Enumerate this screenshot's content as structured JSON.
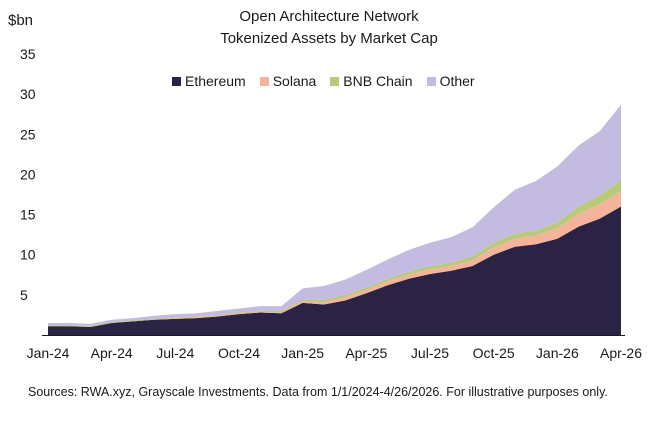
{
  "chart_data": {
    "type": "area",
    "stacked": true,
    "title": "Open Architecture Network",
    "subtitle": "Tokenized Assets by Market Cap",
    "ylabel": "$bn",
    "xlabel": "",
    "ylim": [
      0,
      35
    ],
    "yticks": [
      "5",
      "10",
      "15",
      "20",
      "25",
      "30",
      "35"
    ],
    "ytick_values": [
      5,
      10,
      15,
      20,
      25,
      30,
      35
    ],
    "xticks": [
      "Jan-24",
      "Apr-24",
      "Jul-24",
      "Oct-24",
      "Jan-25",
      "Apr-25",
      "Jul-25",
      "Oct-25",
      "Jan-26",
      "Apr-26"
    ],
    "legend_position": "top-center",
    "x": [
      "2024-01",
      "2024-02",
      "2024-03",
      "2024-04",
      "2024-05",
      "2024-06",
      "2024-07",
      "2024-08",
      "2024-09",
      "2024-10",
      "2024-11",
      "2024-12",
      "2025-01",
      "2025-02",
      "2025-03",
      "2025-04",
      "2025-05",
      "2025-06",
      "2025-07",
      "2025-08",
      "2025-09",
      "2025-10",
      "2025-11",
      "2025-12",
      "2026-01",
      "2026-02",
      "2026-03",
      "2026-04"
    ],
    "series": [
      {
        "name": "Ethereum",
        "color": "#2b2344",
        "values": [
          1.1,
          1.1,
          1.0,
          1.5,
          1.7,
          1.9,
          2.0,
          2.1,
          2.3,
          2.6,
          2.8,
          2.7,
          4.0,
          3.8,
          4.3,
          5.2,
          6.2,
          7.0,
          7.6,
          8.0,
          8.6,
          10.0,
          11.0,
          11.3,
          12.0,
          13.5,
          14.5,
          16.0
        ]
      },
      {
        "name": "Solana",
        "color": "#f4b49c",
        "values": [
          0.0,
          0.0,
          0.0,
          0.0,
          0.0,
          0.0,
          0.1,
          0.1,
          0.1,
          0.1,
          0.1,
          0.1,
          0.2,
          0.3,
          0.4,
          0.4,
          0.5,
          0.5,
          0.6,
          0.6,
          0.7,
          0.9,
          1.0,
          1.1,
          1.3,
          1.6,
          1.8,
          1.9
        ]
      },
      {
        "name": "BNB Chain",
        "color": "#b8c97a",
        "values": [
          0.1,
          0.1,
          0.1,
          0.1,
          0.1,
          0.1,
          0.1,
          0.1,
          0.1,
          0.1,
          0.1,
          0.2,
          0.2,
          0.3,
          0.3,
          0.3,
          0.3,
          0.4,
          0.4,
          0.4,
          0.5,
          0.6,
          0.6,
          0.6,
          0.7,
          0.9,
          1.1,
          1.4
        ]
      },
      {
        "name": "Other",
        "color": "#c4bce0",
        "values": [
          0.3,
          0.3,
          0.3,
          0.3,
          0.3,
          0.4,
          0.4,
          0.4,
          0.5,
          0.5,
          0.6,
          0.6,
          1.4,
          1.7,
          1.9,
          2.2,
          2.4,
          2.7,
          2.9,
          3.2,
          3.6,
          4.4,
          5.5,
          6.2,
          7.0,
          7.6,
          8.0,
          9.4
        ]
      }
    ]
  },
  "source_note": "Sources: RWA.xyz, Grayscale Investments. Data from 1/1/2024-4/26/2026. For illustrative purposes only."
}
